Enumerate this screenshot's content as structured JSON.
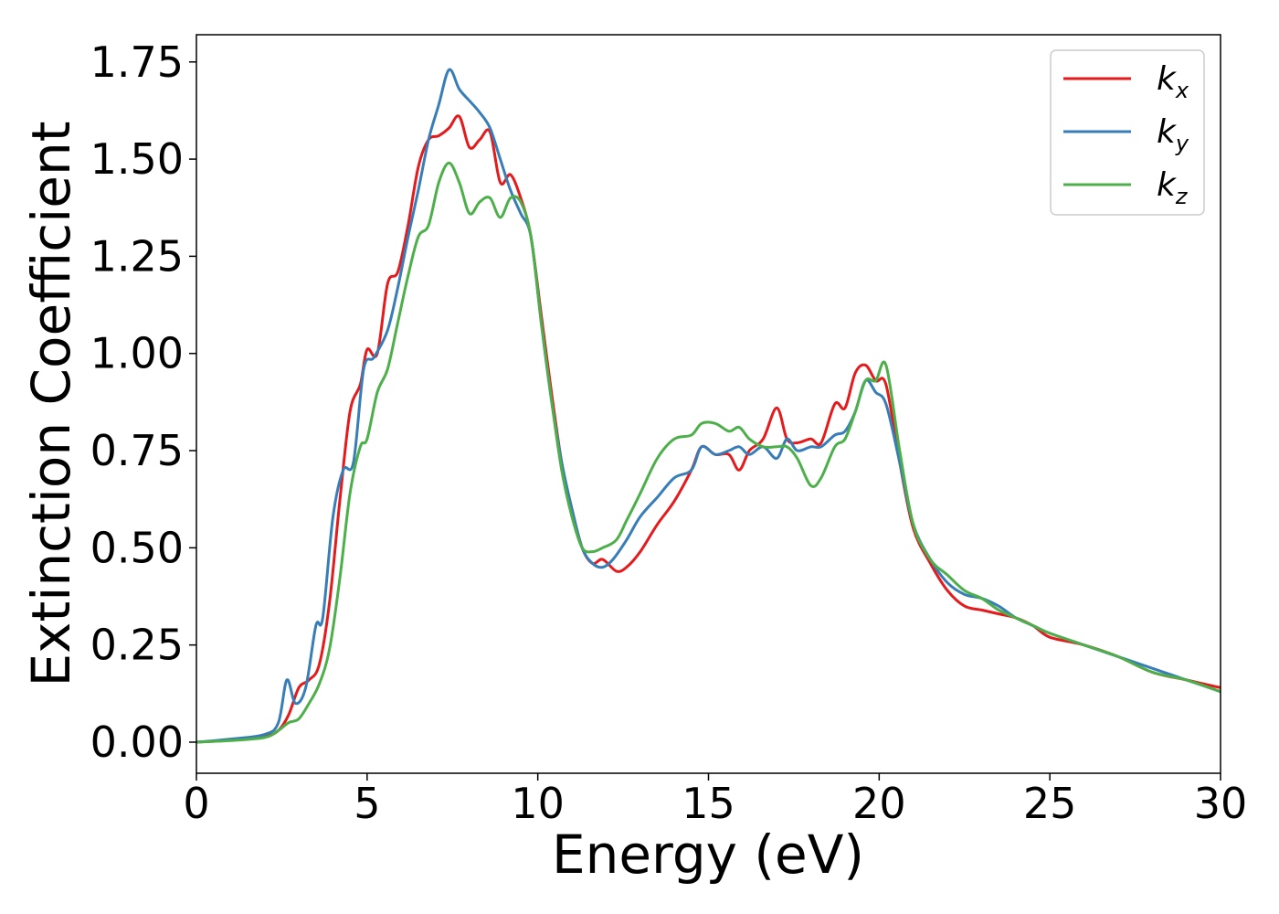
{
  "chart_data": {
    "type": "line",
    "title": "",
    "xlabel": "Energy (eV)",
    "ylabel": "Extinction Coefficient",
    "xlim": [
      0,
      30
    ],
    "ylim": [
      -0.08,
      1.82
    ],
    "xticks": [
      0,
      5,
      10,
      15,
      20,
      25,
      30
    ],
    "xtick_labels": [
      "0",
      "5",
      "10",
      "15",
      "20",
      "25",
      "30"
    ],
    "yticks": [
      0.0,
      0.25,
      0.5,
      0.75,
      1.0,
      1.25,
      1.5,
      1.75
    ],
    "ytick_labels": [
      "0.00",
      "0.25",
      "0.50",
      "0.75",
      "1.00",
      "1.25",
      "1.50",
      "1.75"
    ],
    "grid": false,
    "legend_position": "top-right",
    "series": [
      {
        "name": "k_x",
        "label_base": "k",
        "label_sub": "x",
        "color": "#e41a1c",
        "x": [
          0,
          1,
          2,
          2.4,
          2.7,
          3.0,
          3.3,
          3.6,
          3.9,
          4.2,
          4.5,
          4.8,
          5.0,
          5.3,
          5.6,
          5.9,
          6.2,
          6.5,
          6.8,
          7.1,
          7.4,
          7.7,
          8.0,
          8.3,
          8.6,
          8.9,
          9.2,
          9.5,
          9.8,
          10.1,
          10.4,
          10.7,
          11.0,
          11.3,
          11.6,
          11.9,
          12.3,
          12.6,
          13.0,
          13.5,
          14.0,
          14.5,
          14.8,
          15.2,
          15.6,
          15.9,
          16.2,
          16.6,
          17.0,
          17.3,
          17.6,
          18.0,
          18.3,
          18.7,
          19.0,
          19.3,
          19.6,
          19.9,
          20.2,
          20.6,
          21.0,
          21.5,
          22.0,
          22.5,
          23.0,
          23.5,
          24.0,
          24.5,
          25.0,
          26.0,
          27.0,
          28.0,
          29.0,
          30.0
        ],
        "y": [
          0.0,
          0.005,
          0.015,
          0.03,
          0.07,
          0.14,
          0.16,
          0.2,
          0.36,
          0.62,
          0.85,
          0.92,
          1.01,
          1.0,
          1.18,
          1.21,
          1.33,
          1.48,
          1.55,
          1.56,
          1.58,
          1.61,
          1.53,
          1.55,
          1.57,
          1.44,
          1.46,
          1.4,
          1.3,
          1.1,
          0.9,
          0.72,
          0.6,
          0.5,
          0.46,
          0.47,
          0.44,
          0.45,
          0.49,
          0.56,
          0.62,
          0.7,
          0.76,
          0.74,
          0.74,
          0.7,
          0.75,
          0.78,
          0.86,
          0.78,
          0.77,
          0.78,
          0.77,
          0.87,
          0.86,
          0.95,
          0.97,
          0.93,
          0.92,
          0.72,
          0.55,
          0.46,
          0.39,
          0.35,
          0.34,
          0.33,
          0.32,
          0.3,
          0.27,
          0.25,
          0.22,
          0.18,
          0.16,
          0.14
        ]
      },
      {
        "name": "k_y",
        "label_base": "k",
        "label_sub": "y",
        "color": "#377eb8",
        "x": [
          0,
          1,
          2,
          2.4,
          2.65,
          2.9,
          3.2,
          3.5,
          3.7,
          4.0,
          4.3,
          4.6,
          4.9,
          5.2,
          5.6,
          5.9,
          6.2,
          6.5,
          6.8,
          7.1,
          7.4,
          7.7,
          8.0,
          8.3,
          8.6,
          8.9,
          9.2,
          9.5,
          9.8,
          10.1,
          10.4,
          10.7,
          11.0,
          11.3,
          11.6,
          11.9,
          12.2,
          12.6,
          13.0,
          13.5,
          14.0,
          14.5,
          14.8,
          15.2,
          15.6,
          15.9,
          16.2,
          16.6,
          17.0,
          17.3,
          17.6,
          18.0,
          18.3,
          18.7,
          19.0,
          19.3,
          19.6,
          19.9,
          20.2,
          20.6,
          21.0,
          21.5,
          22.0,
          22.5,
          23.0,
          23.5,
          24.0,
          24.5,
          25.0,
          26.0,
          27.0,
          28.0,
          29.0,
          30.0
        ],
        "y": [
          0.0,
          0.008,
          0.02,
          0.05,
          0.16,
          0.1,
          0.14,
          0.3,
          0.32,
          0.58,
          0.7,
          0.72,
          0.96,
          0.99,
          1.06,
          1.17,
          1.3,
          1.42,
          1.55,
          1.64,
          1.73,
          1.68,
          1.65,
          1.62,
          1.58,
          1.5,
          1.42,
          1.36,
          1.3,
          1.08,
          0.88,
          0.72,
          0.6,
          0.5,
          0.46,
          0.45,
          0.47,
          0.52,
          0.58,
          0.63,
          0.68,
          0.7,
          0.76,
          0.74,
          0.75,
          0.76,
          0.74,
          0.76,
          0.73,
          0.78,
          0.75,
          0.76,
          0.76,
          0.79,
          0.8,
          0.85,
          0.93,
          0.9,
          0.87,
          0.72,
          0.56,
          0.47,
          0.41,
          0.38,
          0.37,
          0.35,
          0.32,
          0.3,
          0.28,
          0.25,
          0.22,
          0.19,
          0.16,
          0.13
        ]
      },
      {
        "name": "k_z",
        "label_base": "k",
        "label_sub": "z",
        "color": "#4daf4a",
        "x": [
          0,
          1,
          2,
          2.4,
          2.7,
          3.0,
          3.3,
          3.6,
          3.9,
          4.2,
          4.5,
          4.8,
          5.0,
          5.3,
          5.6,
          5.9,
          6.2,
          6.5,
          6.8,
          7.1,
          7.4,
          7.7,
          8.0,
          8.3,
          8.6,
          8.9,
          9.2,
          9.5,
          9.8,
          10.1,
          10.4,
          10.7,
          11.0,
          11.3,
          11.6,
          11.9,
          12.3,
          12.6,
          13.0,
          13.5,
          14.0,
          14.5,
          14.8,
          15.2,
          15.6,
          15.9,
          16.2,
          16.6,
          17.0,
          17.3,
          17.6,
          18.0,
          18.3,
          18.7,
          19.0,
          19.3,
          19.6,
          19.9,
          20.2,
          20.6,
          21.0,
          21.5,
          22.0,
          22.5,
          23.0,
          23.5,
          24.0,
          24.5,
          25.0,
          26.0,
          27.0,
          28.0,
          29.0,
          30.0
        ],
        "y": [
          0.0,
          0.004,
          0.012,
          0.03,
          0.05,
          0.06,
          0.1,
          0.15,
          0.24,
          0.42,
          0.64,
          0.76,
          0.78,
          0.9,
          0.96,
          1.08,
          1.2,
          1.3,
          1.33,
          1.44,
          1.49,
          1.44,
          1.36,
          1.39,
          1.4,
          1.35,
          1.4,
          1.39,
          1.3,
          1.08,
          0.88,
          0.7,
          0.58,
          0.5,
          0.49,
          0.5,
          0.52,
          0.57,
          0.64,
          0.73,
          0.78,
          0.79,
          0.82,
          0.82,
          0.8,
          0.81,
          0.78,
          0.76,
          0.76,
          0.76,
          0.73,
          0.66,
          0.68,
          0.76,
          0.78,
          0.85,
          0.93,
          0.93,
          0.97,
          0.75,
          0.56,
          0.47,
          0.43,
          0.39,
          0.37,
          0.34,
          0.32,
          0.3,
          0.28,
          0.25,
          0.22,
          0.18,
          0.16,
          0.13
        ]
      }
    ]
  }
}
